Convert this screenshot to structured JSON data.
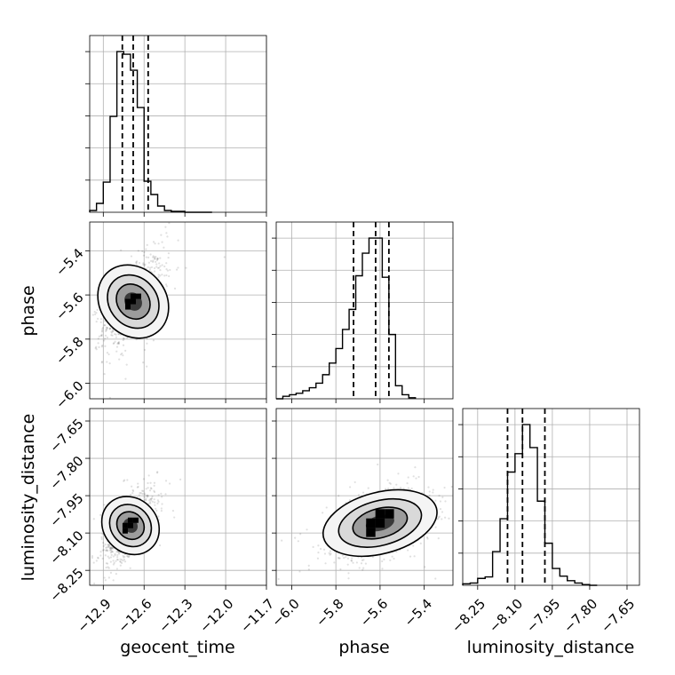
{
  "chart_data": {
    "type": "corner",
    "parameters": [
      "geocent_time",
      "phase",
      "luminosity_distance"
    ],
    "grid": true,
    "axes": {
      "geocent_time": {
        "label": "geocent_time",
        "range": [
          -13.0,
          -11.7
        ],
        "ticks": [
          -12.9,
          -12.6,
          -12.3,
          -12.0,
          -11.7
        ],
        "tick_labels": [
          "−12.9",
          "−12.6",
          "−12.3",
          "−12.0",
          "−11.7"
        ]
      },
      "phase": {
        "label": "phase",
        "range": [
          -6.07,
          -5.27
        ],
        "ticks": [
          -6.0,
          -5.8,
          -5.6,
          -5.4
        ],
        "tick_labels": [
          "−6.0",
          "−5.8",
          "−5.6",
          "−5.4"
        ]
      },
      "luminosity_distance": {
        "label": "luminosity_distance",
        "range": [
          -8.31,
          -7.6
        ],
        "ticks": [
          -8.25,
          -8.1,
          -7.95,
          -7.8,
          -7.65
        ],
        "tick_labels": [
          "−8.25",
          "−8.10",
          "−7.95",
          "−7.80",
          "−7.65"
        ]
      }
    },
    "marginals": [
      {
        "parameter": "geocent_time",
        "bin_edges": [
          -13.0,
          -12.95,
          -12.9,
          -12.85,
          -12.8,
          -12.75,
          -12.7,
          -12.65,
          -12.6,
          -12.55,
          -12.5,
          -12.45,
          -12.4,
          -12.35,
          -12.3,
          -12.25,
          -12.2,
          -12.15,
          -12.1
        ],
        "counts": [
          2,
          10,
          34,
          108,
          181,
          178,
          160,
          118,
          35,
          20,
          7,
          2,
          1,
          1,
          0,
          0,
          0,
          0
        ],
        "quantiles": [
          -12.76,
          -12.68,
          -12.57
        ]
      },
      {
        "parameter": "phase",
        "bin_edges": [
          -6.07,
          -6.04,
          -6.01,
          -5.98,
          -5.95,
          -5.92,
          -5.89,
          -5.86,
          -5.83,
          -5.8,
          -5.77,
          -5.74,
          -5.71,
          -5.68,
          -5.65,
          -5.62,
          -5.59,
          -5.56,
          -5.53,
          -5.5,
          -5.47,
          -5.44
        ],
        "counts": [
          0,
          5,
          8,
          11,
          16,
          22,
          31,
          48,
          71,
          100,
          138,
          178,
          245,
          290,
          320,
          320,
          242,
          128,
          26,
          8,
          2
        ],
        "quantiles": [
          -5.72,
          -5.62,
          -5.56
        ]
      },
      {
        "parameter": "luminosity_distance",
        "bin_edges": [
          -8.31,
          -8.28,
          -8.25,
          -8.22,
          -8.19,
          -8.16,
          -8.13,
          -8.1,
          -8.07,
          -8.04,
          -8.01,
          -7.98,
          -7.95,
          -7.92,
          -7.89,
          -7.86,
          -7.83,
          -7.8,
          -7.77
        ],
        "counts": [
          2,
          3,
          9,
          11,
          44,
          87,
          148,
          172,
          210,
          180,
          110,
          55,
          22,
          12,
          6,
          3,
          1,
          0
        ],
        "quantiles": [
          -8.13,
          -8.07,
          -7.98
        ]
      }
    ],
    "joints": [
      {
        "x": "geocent_time",
        "y": "phase",
        "peak": [
          -12.68,
          -5.63
        ],
        "scatter_spread": [
          0.11,
          0.1
        ],
        "correlation": 0.55
      },
      {
        "x": "geocent_time",
        "y": "luminosity_distance",
        "peak": [
          -12.7,
          -8.07
        ],
        "scatter_spread": [
          0.09,
          0.07
        ],
        "correlation": 0.65
      },
      {
        "x": "phase",
        "y": "luminosity_distance",
        "peak": [
          -5.6,
          -8.06
        ],
        "scatter_spread": [
          0.12,
          0.07
        ],
        "correlation": 0.4
      }
    ]
  }
}
